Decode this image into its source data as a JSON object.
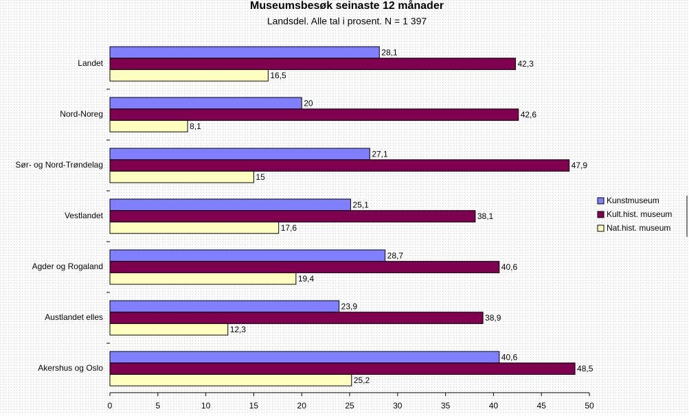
{
  "chart_data": {
    "type": "hbar",
    "title": "Museumsbesøk seinaste 12 månader",
    "subtitle": "Landsdel. Alle tal i prosent. N = 1 397",
    "categories": [
      "Landet",
      "Nord-Noreg",
      "Sør- og Nord-Trøndelag",
      "Vestlandet",
      "Agder og Rogaland",
      "Austlandet elles",
      "Akershus og Oslo"
    ],
    "series": [
      {
        "name": "Kunstmuseum",
        "color": "#8080ff",
        "values": [
          28.1,
          20,
          27.1,
          25.1,
          28.7,
          23.9,
          40.6
        ],
        "value_labels": [
          "28,1",
          "20",
          "27,1",
          "25,1",
          "28,7",
          "23,9",
          "40,6"
        ]
      },
      {
        "name": "Kult.hist. museum",
        "color": "#800050",
        "values": [
          42.3,
          42.6,
          47.9,
          38.1,
          40.6,
          38.9,
          48.5
        ],
        "value_labels": [
          "42,3",
          "42,6",
          "47,9",
          "38,1",
          "40,6",
          "38,9",
          "48,5"
        ]
      },
      {
        "name": "Nat.hist. museum",
        "color": "#ffffc0",
        "values": [
          16.5,
          8.1,
          15,
          17.6,
          19.4,
          12.3,
          25.2
        ],
        "value_labels": [
          "16,5",
          "8,1",
          "15",
          "17,6",
          "19,4",
          "12,3",
          "25,2"
        ]
      }
    ],
    "xlim": [
      0,
      50
    ],
    "xticks": [
      0,
      5,
      10,
      15,
      20,
      25,
      30,
      35,
      40,
      45,
      50
    ],
    "legend": "right"
  }
}
